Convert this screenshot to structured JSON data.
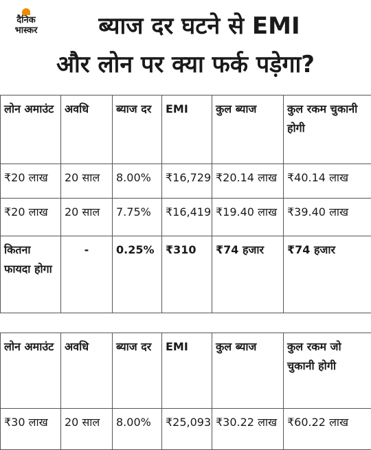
{
  "header": {
    "logo": [
      "दैनिक",
      "भास्कर"
    ],
    "title": [
      "ब्याज दर घटने से EMI",
      "और लोन पर क्या फर्क पड़ेगा?"
    ]
  },
  "tables": [
    {
      "columns": [
        "लोन अमाउंट",
        "अवधि",
        "ब्याज दर",
        "EMI",
        "कुल ब्याज",
        "कुल रकम चुकानी होगी"
      ],
      "rows": [
        [
          "₹20 लाख",
          "20 साल",
          "8.00%",
          "₹16,729",
          "₹20.14 लाख",
          "₹40.14 लाख"
        ],
        [
          "₹20 लाख",
          "20 साल",
          "7.75%",
          "₹16,419",
          "₹19.40 लाख",
          "₹39.40 लाख"
        ],
        [
          "कितना फायदा होगा",
          "-",
          "0.25%",
          "₹310",
          "₹74 हजार",
          "₹74 हजार"
        ]
      ]
    },
    {
      "columns": [
        "लोन अमाउंट",
        "अवधि",
        "ब्याज दर",
        "EMI",
        "कुल ब्याज",
        "कुल रकम जो चुकानी होगी"
      ],
      "rows": [
        [
          "₹30 लाख",
          "20 साल",
          "8.00%",
          "₹25,093",
          "₹30.22 लाख",
          "₹60.22 लाख"
        ]
      ]
    }
  ]
}
